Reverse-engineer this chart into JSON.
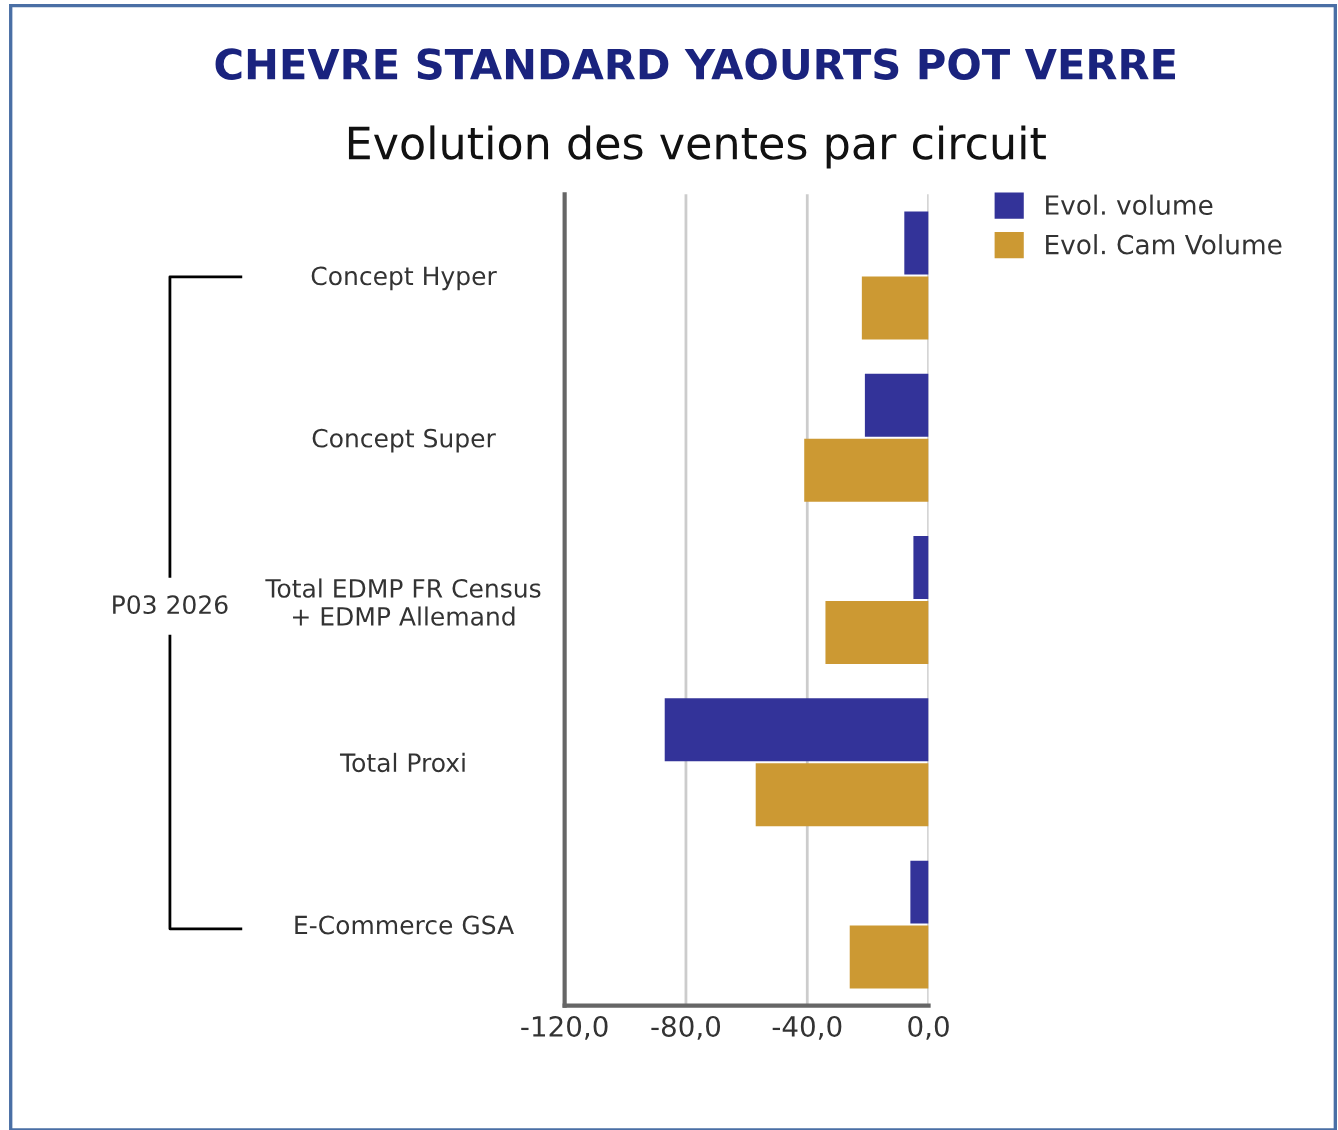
{
  "chart_data": {
    "type": "bar",
    "orientation": "horizontal",
    "title": "CHEVRE STANDARD YAOURTS POT VERRE",
    "subtitle": "Evolution des ventes par circuit",
    "categories": [
      "Concept Hyper",
      "Concept Super",
      "Total EDMP FR Census\n+ EDMP Allemand",
      "Total Proxi",
      "E-Commerce GSA"
    ],
    "series": [
      {
        "name": "Evol. volume",
        "color": "#333399",
        "values": [
          -8,
          -21,
          -5,
          -87,
          -6
        ]
      },
      {
        "name": "Evol. Cam Volume",
        "color": "#cc9933",
        "values": [
          -22,
          -41,
          -34,
          -57,
          -26
        ]
      }
    ],
    "xlim": [
      -120,
      0
    ],
    "xticks": [
      {
        "value": -120,
        "label": "-120,0"
      },
      {
        "value": -80,
        "label": "-80,0"
      },
      {
        "value": -40,
        "label": "-40,0"
      },
      {
        "value": 0,
        "label": "0,0"
      }
    ],
    "grid": "x",
    "legend": "top right",
    "annotations": [
      "P03 2026"
    ]
  }
}
